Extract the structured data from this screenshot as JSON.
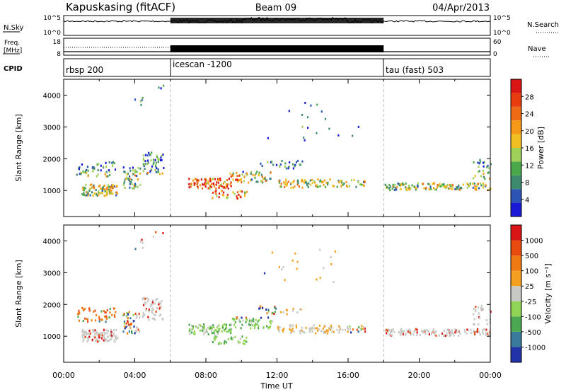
{
  "header": {
    "station": "Kapuskasing (fitACF)",
    "beam": "Beam 09",
    "date": "04/Apr/2013"
  },
  "noise_panel": {
    "left_label": "N.Sky",
    "right_label": "N.Search",
    "left_ticks": [
      "10^5",
      "10^0"
    ],
    "right_ticks": [
      "10^5",
      "10^0"
    ]
  },
  "freq_panel": {
    "left_label_1": "Freq.",
    "left_label_2": "[MHz]",
    "right_label": "Nave",
    "left_ticks": [
      "18",
      "8"
    ],
    "right_ticks": [
      "60",
      "0"
    ]
  },
  "cpid_panel": {
    "label": "CPID",
    "modes": [
      {
        "name": "rbsp 200",
        "start_hour": 0
      },
      {
        "name": "icescan -1200",
        "start_hour": 6
      },
      {
        "name": "tau (fast) 503",
        "start_hour": 18
      }
    ]
  },
  "chart_data": [
    {
      "type": "heatmap",
      "panel": "power",
      "ylabel": "Slant Range [km]",
      "xlabel": "Time UT",
      "xlim_hours": [
        0,
        24
      ],
      "ylim_km": [
        180,
        4500
      ],
      "x_tick_labels": [
        "00:00",
        "04:00",
        "08:00",
        "12:00",
        "16:00",
        "20:00",
        "00:00"
      ],
      "y_tick_labels": [
        "1000",
        "2000",
        "3000",
        "4000"
      ],
      "colorbar": {
        "label": "Power [dB]",
        "ticks": [
          "4",
          "8",
          "12",
          "16",
          "20",
          "24",
          "28"
        ],
        "range": [
          0,
          30
        ],
        "colors": [
          "#1a1ad6",
          "#2d55b5",
          "#3e8a6e",
          "#4aa84a",
          "#9fd15a",
          "#f0c020",
          "#f59a18",
          "#ef6a14",
          "#e83c10",
          "#d91515"
        ]
      }
    },
    {
      "type": "heatmap",
      "panel": "velocity",
      "ylabel": "Slant Range [km]",
      "xlabel": "Time UT",
      "xlim_hours": [
        0,
        24
      ],
      "ylim_km": [
        180,
        4500
      ],
      "x_tick_labels": [
        "00:00",
        "04:00",
        "08:00",
        "12:00",
        "16:00",
        "20:00",
        "00:00"
      ],
      "y_tick_labels": [
        "1000",
        "2000",
        "3000",
        "4000"
      ],
      "colorbar": {
        "label": "Velocity [m s⁻¹]",
        "ticks": [
          "1000",
          "500",
          "100",
          "25",
          "-25",
          "-100",
          "-500",
          "-1000"
        ],
        "colors": [
          "#2233a8",
          "#3a7a9a",
          "#4ca850",
          "#8fd454",
          "#c8c8c4",
          "#f3a020",
          "#ef7a14",
          "#e84a10",
          "#d91515"
        ]
      }
    }
  ],
  "axis": {
    "time_label": "Time UT"
  }
}
